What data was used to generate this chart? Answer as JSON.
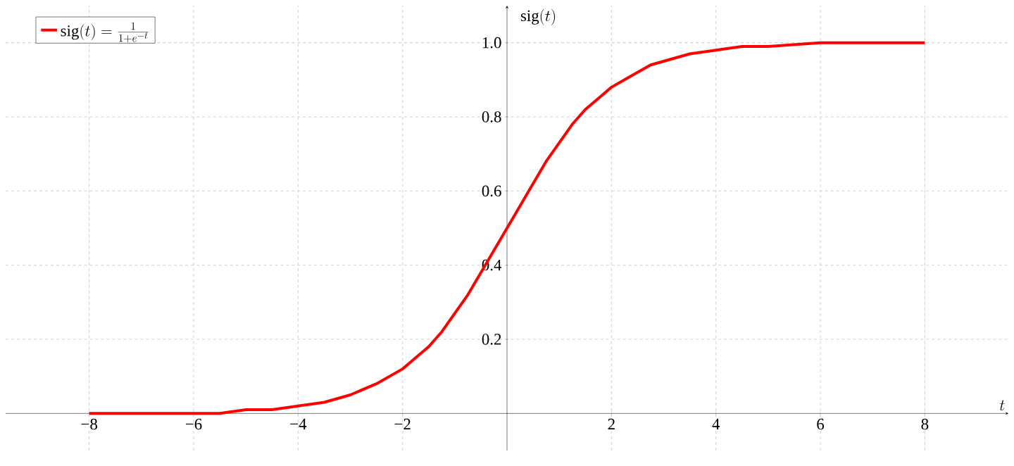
{
  "chart_data": {
    "type": "line",
    "xlabel": "t",
    "ylabel": "\\mathrm{sig}(t)",
    "xlim": [
      -9.6,
      9.6
    ],
    "ylim": [
      -0.1,
      1.1
    ],
    "xticks": [
      {
        "value": -8,
        "label": "−8"
      },
      {
        "value": -6,
        "label": "−6"
      },
      {
        "value": -4,
        "label": "−4"
      },
      {
        "value": -2,
        "label": "−2"
      },
      2,
      4,
      6,
      8
    ],
    "yticks": [
      0.2,
      0.4,
      0.6,
      0.8,
      {
        "value": 1,
        "label": "1.0"
      }
    ],
    "grid": true,
    "legend": "top left",
    "marker": "none",
    "line_style": "solid",
    "series": [
      {
        "name": "\\mathrm{sig}(t) = \\frac{1}{1+e^{-t}}",
        "color": "#ff0000",
        "x": [
          -8,
          -7,
          -6,
          -5.5,
          -5,
          -4.5,
          -4,
          -3.5,
          -3,
          -2.5,
          -2,
          -1.75,
          -1.5,
          -1.25,
          -1,
          -0.75,
          -0.5,
          -0.25,
          0,
          0.25,
          0.5,
          0.75,
          1,
          1.25,
          1.5,
          1.75,
          2,
          2.25,
          2.5,
          2.75,
          3,
          3.5,
          4,
          4.5,
          5,
          6,
          7,
          8
        ],
        "values": [
          0.0,
          0.0,
          0.0,
          0.0,
          0.01,
          0.01,
          0.02,
          0.03,
          0.05,
          0.08,
          0.12,
          0.15,
          0.18,
          0.22,
          0.27,
          0.32,
          0.38,
          0.44,
          0.5,
          0.56,
          0.62,
          0.68,
          0.73,
          0.78,
          0.82,
          0.85,
          0.88,
          0.9,
          0.92,
          0.94,
          0.95,
          0.97,
          0.98,
          0.99,
          0.99,
          1.0,
          1.0,
          1.0
        ]
      }
    ]
  }
}
